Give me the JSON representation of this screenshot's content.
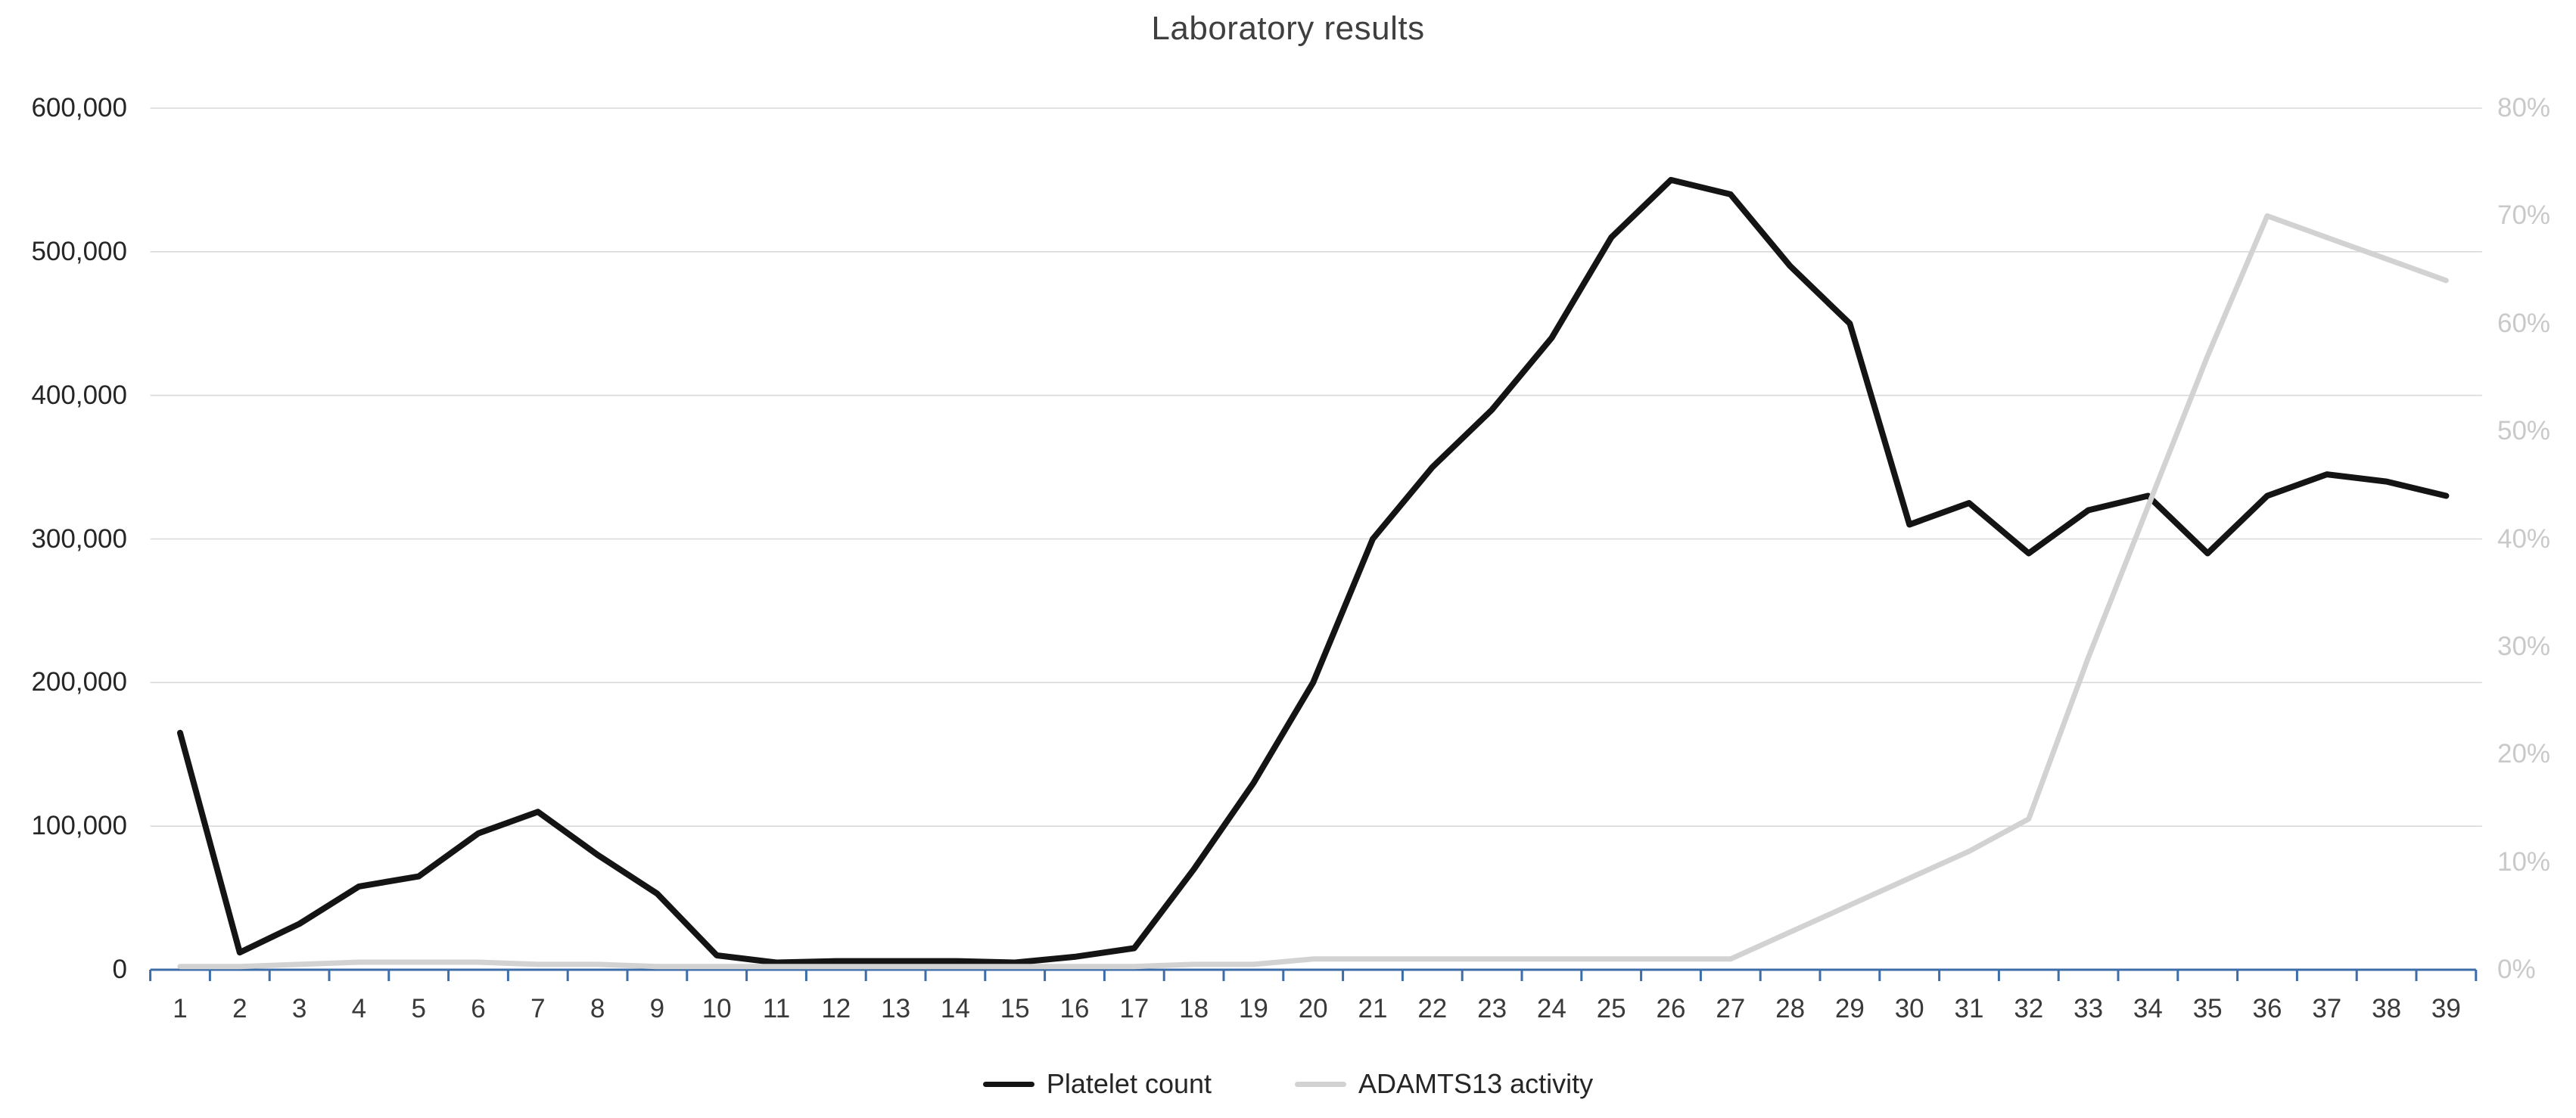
{
  "chart_data": {
    "type": "line",
    "title": "Laboratory results",
    "xlabel": "",
    "ylabel_left": "",
    "ylabel_right": "",
    "categories": [
      1,
      2,
      3,
      4,
      5,
      6,
      7,
      8,
      9,
      10,
      11,
      12,
      13,
      14,
      15,
      16,
      17,
      18,
      19,
      20,
      21,
      22,
      23,
      24,
      25,
      26,
      27,
      28,
      29,
      30,
      31,
      32,
      33,
      34,
      35,
      36,
      37,
      38,
      39
    ],
    "series": [
      {
        "name": "Platelet count",
        "axis": "left",
        "color": "#141414",
        "values": [
          165000,
          12000,
          32000,
          58000,
          65000,
          95000,
          110000,
          80000,
          53000,
          10000,
          5000,
          6000,
          6000,
          6000,
          5000,
          9000,
          15000,
          70000,
          130000,
          200000,
          300000,
          350000,
          390000,
          440000,
          510000,
          550000,
          540000,
          490000,
          450000,
          310000,
          325000,
          290000,
          320000,
          330000,
          290000,
          330000,
          345000,
          340000,
          330000
        ]
      },
      {
        "name": "ADAMTS13 activity",
        "axis": "right",
        "color": "#d2d2d2",
        "values": [
          0.3,
          0.3,
          0.5,
          0.7,
          0.7,
          0.7,
          0.5,
          0.5,
          0.3,
          0.3,
          0.3,
          0.3,
          0.3,
          0.3,
          0.3,
          0.3,
          0.3,
          0.5,
          0.5,
          1,
          1,
          1,
          1,
          1,
          1,
          1,
          1,
          3.5,
          6,
          8.5,
          11,
          14,
          29,
          43,
          57,
          70,
          68,
          66,
          64
        ]
      }
    ],
    "left_axis": {
      "range": [
        0,
        600000
      ],
      "tick_values": [
        0,
        100000,
        200000,
        300000,
        400000,
        500000,
        600000
      ],
      "ticks": [
        "0",
        "100,000",
        "200,000",
        "300,000",
        "400,000",
        "500,000",
        "600,000"
      ]
    },
    "right_axis": {
      "range": [
        0,
        80
      ],
      "tick_values": [
        0,
        10,
        20,
        30,
        40,
        50,
        60,
        70,
        80
      ],
      "ticks": [
        "0%",
        "10%",
        "20%",
        "30%",
        "40%",
        "50%",
        "60%",
        "70%",
        "80%"
      ]
    },
    "legend_position": "bottom",
    "grid": true
  },
  "colors": {
    "background": "#ffffff",
    "title": "#3f3f3f",
    "gridline": "#d9d9d9",
    "axis_line": "#3c6da8",
    "left_tick_labels": "#262626",
    "x_tick_labels": "#3a3a3a",
    "right_tick_labels": "#c9c9c9",
    "legend_text": "#262626"
  }
}
